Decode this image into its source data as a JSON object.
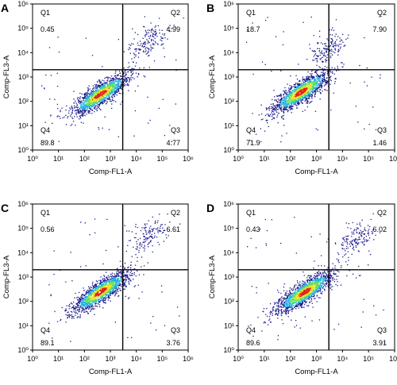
{
  "chart_data": [
    {
      "type": "scatter",
      "panel_label": "A",
      "xlabel": "Comp-FL1-A",
      "ylabel": "Comp-FL3-A",
      "xscale": "log",
      "yscale": "log",
      "xlim": [
        1,
        1000000
      ],
      "ylim": [
        1,
        1000000
      ],
      "gate": {
        "x": 3000,
        "y": 2000
      },
      "quadrants": [
        {
          "name": "Q1",
          "value": "0.45"
        },
        {
          "name": "Q2",
          "value": "4.99"
        },
        {
          "name": "Q3",
          "value": "4.77"
        },
        {
          "name": "Q4",
          "value": "89.8"
        }
      ],
      "population": {
        "center": [
          400,
          200
        ],
        "upper_cluster": [
          30000,
          30000
        ]
      }
    },
    {
      "type": "scatter",
      "panel_label": "B",
      "xlabel": "Comp-FL1-A",
      "ylabel": "Comp-FL3-A",
      "xscale": "log",
      "yscale": "log",
      "xlim": [
        1,
        1000000
      ],
      "ylim": [
        1,
        1000000
      ],
      "gate": {
        "x": 3000,
        "y": 2000
      },
      "quadrants": [
        {
          "name": "Q1",
          "value": "18.7"
        },
        {
          "name": "Q2",
          "value": "7.90"
        },
        {
          "name": "Q3",
          "value": "1.46"
        },
        {
          "name": "Q4",
          "value": "71.9"
        }
      ],
      "population": {
        "center": [
          250,
          250
        ],
        "upper_cluster": [
          2500,
          15000
        ]
      }
    },
    {
      "type": "scatter",
      "panel_label": "C",
      "xlabel": "Comp-FL1-A",
      "ylabel": "Comp-FL3-A",
      "xscale": "log",
      "yscale": "log",
      "xlim": [
        1,
        1000000
      ],
      "ylim": [
        1,
        1000000
      ],
      "gate": {
        "x": 3000,
        "y": 2000
      },
      "quadrants": [
        {
          "name": "Q1",
          "value": "0.56"
        },
        {
          "name": "Q2",
          "value": "6.61"
        },
        {
          "name": "Q3",
          "value": "3.76"
        },
        {
          "name": "Q4",
          "value": "89.1"
        }
      ],
      "population": {
        "center": [
          400,
          250
        ],
        "upper_cluster": [
          30000,
          60000
        ]
      }
    },
    {
      "type": "scatter",
      "panel_label": "D",
      "xlabel": "Comp-FL1-A",
      "ylabel": "Comp-FL3-A",
      "xscale": "log",
      "yscale": "log",
      "xlim": [
        1,
        1000000
      ],
      "ylim": [
        1,
        1000000
      ],
      "gate": {
        "x": 3000,
        "y": 2000
      },
      "quadrants": [
        {
          "name": "Q1",
          "value": "0.43"
        },
        {
          "name": "Q2",
          "value": "6.02"
        },
        {
          "name": "Q3",
          "value": "3.91"
        },
        {
          "name": "Q4",
          "value": "89.6"
        }
      ],
      "population": {
        "center": [
          350,
          250
        ],
        "upper_cluster": [
          30000,
          40000
        ]
      }
    }
  ],
  "colors": {
    "axis": "#000000",
    "density_low": "#1a1a8c",
    "density_mid": "#20b0e0",
    "density_midhigh": "#60e060",
    "density_high": "#f0e020",
    "density_peak": "#e02020"
  }
}
